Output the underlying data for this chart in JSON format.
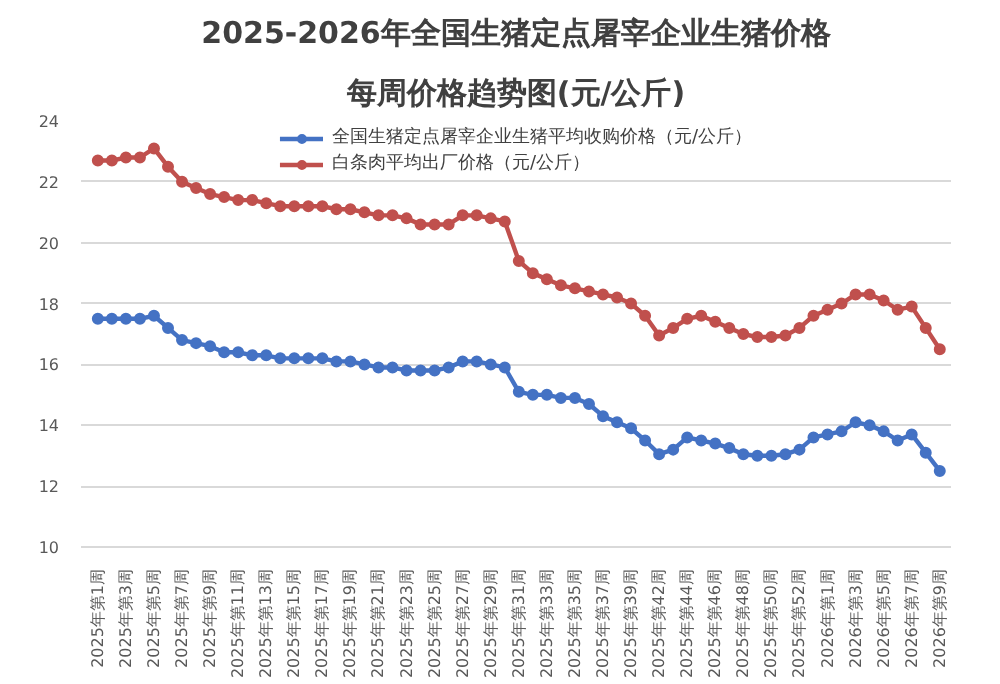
{
  "chart_data": {
    "type": "line",
    "title": "2025-2026年全国生猪定点屠宰企业生猪价格",
    "subtitle": "每周价格趋势图(元/公斤)",
    "categories": [
      "2025年第1周",
      null,
      "2025年第3周",
      null,
      "2025年第5周",
      null,
      "2025年第7周",
      null,
      "2025年第9周",
      null,
      "2025年第11周",
      null,
      "2025年第13周",
      null,
      "2025年第15周",
      null,
      "2025年第17周",
      null,
      "2025年第19周",
      null,
      "2025年第21周",
      null,
      "2025年第23周",
      null,
      "2025年第25周",
      null,
      "2025年第27周",
      null,
      "2025年第29周",
      null,
      "2025年第31周",
      null,
      "2025年第33周",
      null,
      "2025年第35周",
      null,
      "2025年第37周",
      null,
      "2025年第39周",
      null,
      "2025年第42周",
      null,
      "2025年第44周",
      null,
      "2025年第46周",
      null,
      "2025年第48周",
      null,
      "2025年第50周",
      null,
      "2025年第52周",
      null,
      "2026年第1周",
      null,
      "2026年第3周",
      null,
      "2026年第5周",
      null,
      "2026年第7周",
      null,
      "2026年第9周"
    ],
    "series": [
      {
        "name": "全国生猪定点屠宰企业生猪平均收购价格（元/公斤）",
        "color": "#4472c4",
        "values": [
          17.5,
          17.5,
          17.5,
          17.5,
          17.6,
          17.2,
          16.8,
          16.7,
          16.6,
          16.4,
          16.4,
          16.3,
          16.3,
          16.2,
          16.2,
          16.2,
          16.2,
          16.1,
          16.1,
          16.0,
          15.9,
          15.9,
          15.8,
          15.8,
          15.8,
          15.9,
          16.1,
          16.1,
          16.0,
          15.9,
          15.1,
          15.0,
          15.0,
          14.9,
          14.9,
          14.7,
          14.3,
          14.1,
          13.9,
          13.5,
          13.05,
          13.2,
          13.6,
          13.5,
          13.4,
          13.25,
          13.05,
          13.0,
          13.0,
          13.05,
          13.2,
          13.6,
          13.7,
          13.8,
          14.1,
          14.0,
          13.8,
          13.5,
          13.7,
          13.1,
          12.5
        ]
      },
      {
        "name": "白条肉平均出厂价格（元/公斤）",
        "color": "#c0504d",
        "values": [
          22.7,
          22.7,
          22.8,
          22.8,
          23.1,
          22.5,
          22.0,
          21.8,
          21.6,
          21.5,
          21.4,
          21.4,
          21.3,
          21.2,
          21.2,
          21.2,
          21.2,
          21.1,
          21.1,
          21.0,
          20.9,
          20.9,
          20.8,
          20.6,
          20.6,
          20.6,
          20.9,
          20.9,
          20.8,
          20.7,
          19.4,
          19.0,
          18.8,
          18.6,
          18.5,
          18.4,
          18.3,
          18.2,
          18.0,
          17.6,
          16.95,
          17.2,
          17.5,
          17.6,
          17.4,
          17.2,
          17.0,
          16.9,
          16.9,
          16.95,
          17.2,
          17.6,
          17.8,
          18.0,
          18.3,
          18.3,
          18.1,
          17.8,
          17.9,
          17.2,
          16.5
        ]
      }
    ],
    "ylim": [
      10,
      24
    ],
    "yticks": [
      10,
      12,
      14,
      16,
      18,
      20,
      22,
      24
    ],
    "grid": "y",
    "legend": "top",
    "marker": "circle",
    "line_style": "solid"
  }
}
